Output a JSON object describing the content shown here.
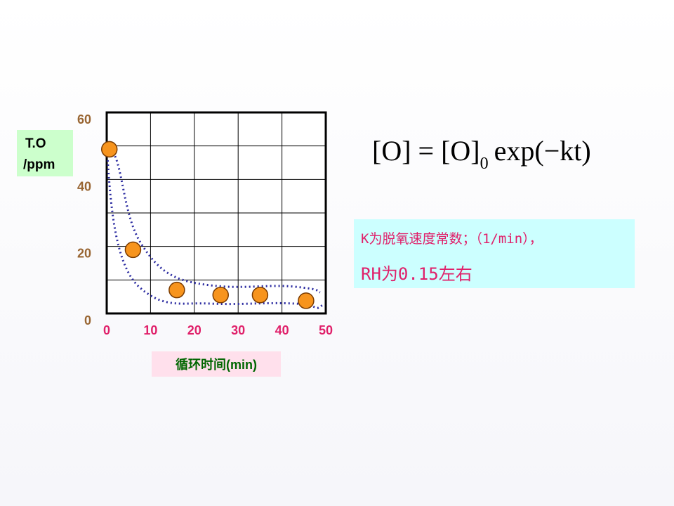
{
  "chart_data": {
    "type": "scatter",
    "x_label": "循环时间(min)",
    "y_label": [
      "T.O",
      "/ppm"
    ],
    "x": [
      0.6,
      6,
      16,
      26,
      35,
      45.5
    ],
    "values": [
      49,
      19,
      7,
      5.5,
      5.5,
      3.8
    ],
    "color": "#f7941d",
    "xlim": [
      0,
      50
    ],
    "ylim": [
      0,
      60
    ],
    "xticks": [
      0,
      10,
      20,
      30,
      40,
      50
    ],
    "yticks": [
      0,
      20,
      40,
      60
    ],
    "ygrid": [
      0,
      10,
      20,
      30,
      40,
      50,
      60
    ],
    "grid": true
  },
  "formula": {
    "left": "[O] = [O]",
    "subscript": "0",
    "right": "exp(−kt)"
  },
  "note": [
    "K为脱氧速度常数；（1/min），",
    "RH为0.15左右"
  ]
}
